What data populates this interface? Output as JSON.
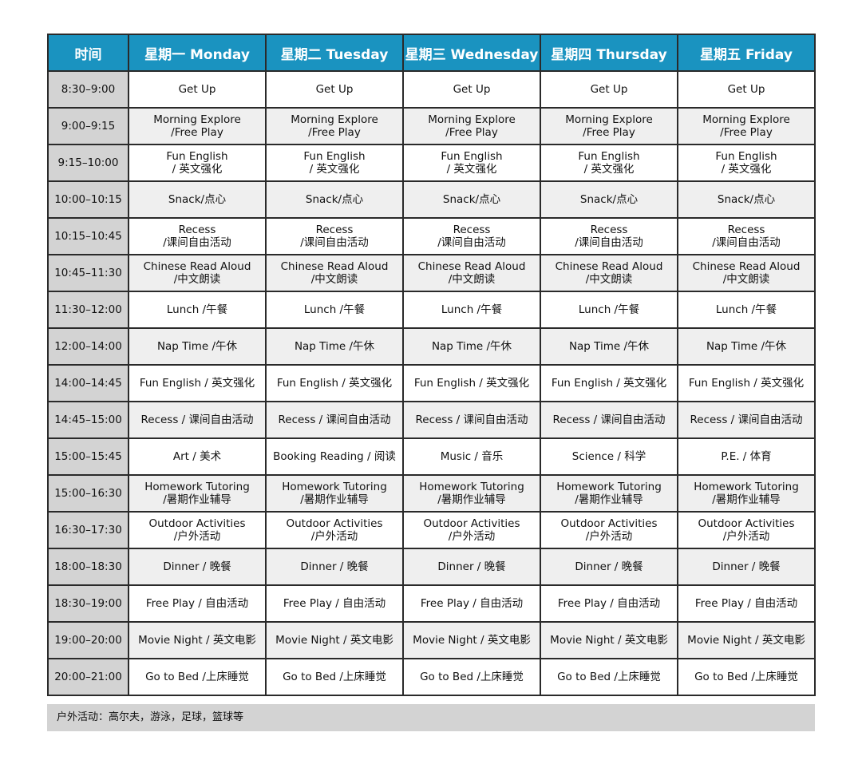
{
  "header": {
    "time": "时间",
    "days": [
      "星期一 Monday",
      "星期二 Tuesday",
      "星期三 Wednesday",
      "星期四 Thursday",
      "星期五 Friday"
    ]
  },
  "colors": {
    "header_bg": "#1a93c0",
    "time_col_bg": "#d3d3d3",
    "alt_row_bg": "#efefef"
  },
  "rows": [
    {
      "time": "8:30–9:00",
      "cells": [
        "Get Up",
        "Get Up",
        "Get Up",
        "Get Up",
        "Get Up"
      ]
    },
    {
      "time": "9:00–9:15",
      "cells": [
        "Morning Explore\n/Free Play",
        "Morning Explore\n/Free Play",
        "Morning Explore\n/Free Play",
        "Morning Explore\n/Free Play",
        "Morning Explore\n/Free Play"
      ]
    },
    {
      "time": "9:15–10:00",
      "cells": [
        "Fun English\n/ 英文强化",
        "Fun English\n/ 英文强化",
        "Fun English\n/ 英文强化",
        "Fun English\n/ 英文强化",
        "Fun English\n/ 英文强化"
      ]
    },
    {
      "time": "10:00–10:15",
      "cells": [
        "Snack/点心",
        "Snack/点心",
        "Snack/点心",
        "Snack/点心",
        "Snack/点心"
      ]
    },
    {
      "time": "10:15–10:45",
      "cells": [
        "Recess\n/课间自由活动",
        "Recess\n/课间自由活动",
        "Recess\n/课间自由活动",
        "Recess\n/课间自由活动",
        "Recess\n/课间自由活动"
      ]
    },
    {
      "time": "10:45–11:30",
      "cells": [
        "Chinese Read Aloud\n/中文朗读",
        "Chinese Read Aloud\n/中文朗读",
        "Chinese Read Aloud\n/中文朗读",
        "Chinese Read Aloud\n/中文朗读",
        "Chinese Read Aloud\n/中文朗读"
      ]
    },
    {
      "time": "11:30–12:00",
      "cells": [
        "Lunch /午餐",
        "Lunch /午餐",
        "Lunch /午餐",
        "Lunch /午餐",
        "Lunch /午餐"
      ]
    },
    {
      "time": "12:00–14:00",
      "cells": [
        "Nap Time /午休",
        "Nap Time /午休",
        "Nap Time /午休",
        "Nap Time /午休",
        "Nap Time /午休"
      ]
    },
    {
      "time": "14:00–14:45",
      "cells": [
        "Fun English / 英文强化",
        "Fun English / 英文强化",
        "Fun English / 英文强化",
        "Fun English / 英文强化",
        "Fun English / 英文强化"
      ]
    },
    {
      "time": "14:45–15:00",
      "cells": [
        "Recess / 课间自由活动",
        "Recess / 课间自由活动",
        "Recess / 课间自由活动",
        "Recess / 课间自由活动",
        "Recess / 课间自由活动"
      ]
    },
    {
      "time": "15:00–15:45",
      "cells": [
        "Art / 美术",
        "Booking Reading / 阅读",
        "Music / 音乐",
        "Science / 科学",
        "P.E. / 体育"
      ]
    },
    {
      "time": "15:00–16:30",
      "cells": [
        "Homework Tutoring\n/暑期作业辅导",
        "Homework Tutoring\n/暑期作业辅导",
        "Homework Tutoring\n/暑期作业辅导",
        "Homework Tutoring\n/暑期作业辅导",
        "Homework Tutoring\n/暑期作业辅导"
      ]
    },
    {
      "time": "16:30–17:30",
      "cells": [
        "Outdoor Activities\n/户外活动",
        "Outdoor Activities\n/户外活动",
        "Outdoor Activities\n/户外活动",
        "Outdoor Activities\n/户外活动",
        "Outdoor Activities\n/户外活动"
      ]
    },
    {
      "time": "18:00–18:30",
      "cells": [
        "Dinner / 晚餐",
        "Dinner / 晚餐",
        "Dinner / 晚餐",
        "Dinner / 晚餐",
        "Dinner / 晚餐"
      ]
    },
    {
      "time": "18:30–19:00",
      "cells": [
        "Free Play / 自由活动",
        "Free Play / 自由活动",
        "Free Play / 自由活动",
        "Free Play / 自由活动",
        "Free Play / 自由活动"
      ]
    },
    {
      "time": "19:00–20:00",
      "cells": [
        "Movie Night / 英文电影",
        "Movie Night / 英文电影",
        "Movie Night / 英文电影",
        "Movie Night / 英文电影",
        "Movie Night / 英文电影"
      ]
    },
    {
      "time": "20:00–21:00",
      "cells": [
        "Go to Bed /上床睡觉",
        "Go to Bed /上床睡觉",
        "Go to Bed /上床睡觉",
        "Go to Bed /上床睡觉",
        "Go to Bed /上床睡觉"
      ]
    }
  ],
  "footer": "户外活动：高尔夫，游泳，足球，篮球等"
}
